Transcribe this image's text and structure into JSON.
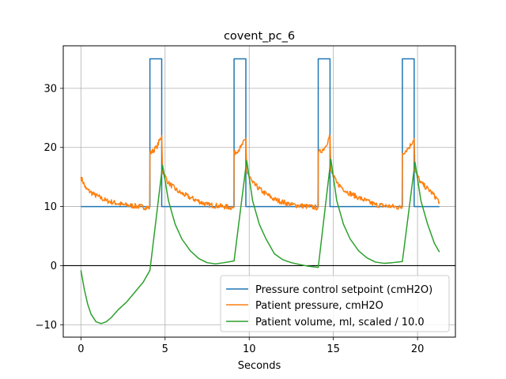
{
  "chart_data": {
    "type": "line",
    "title": "covent_pc_6",
    "xlabel": "Seconds",
    "ylabel": "",
    "xlim": [
      -1.05,
      22.25
    ],
    "ylim": [
      -12.1,
      37.2
    ],
    "xticks": [
      0,
      5,
      10,
      15,
      20
    ],
    "yticks": [
      -10,
      0,
      10,
      20,
      30
    ],
    "grid": true,
    "zero_line": 0,
    "legend_position": "lower-right",
    "series": [
      {
        "name": "Pressure control setpoint (cmH2O)",
        "color": "#1f77b4",
        "points": [
          [
            0,
            10
          ],
          [
            4.1,
            10
          ],
          [
            4.1,
            35
          ],
          [
            4.8,
            35
          ],
          [
            4.8,
            10
          ],
          [
            9.1,
            10
          ],
          [
            9.1,
            35
          ],
          [
            9.8,
            35
          ],
          [
            9.8,
            10
          ],
          [
            14.1,
            10
          ],
          [
            14.1,
            35
          ],
          [
            14.8,
            35
          ],
          [
            14.8,
            10
          ],
          [
            19.1,
            10
          ],
          [
            19.1,
            35
          ],
          [
            19.8,
            35
          ],
          [
            19.8,
            10
          ],
          [
            21.3,
            10
          ]
        ]
      },
      {
        "name": "Patient pressure, cmH2O",
        "color": "#ff7f0e",
        "noise": 0.45,
        "points": [
          [
            0,
            15
          ],
          [
            0.3,
            13
          ],
          [
            0.8,
            12
          ],
          [
            1.5,
            11
          ],
          [
            2.5,
            10.3
          ],
          [
            3.5,
            10
          ],
          [
            4.08,
            9.8
          ],
          [
            4.1,
            19
          ],
          [
            4.5,
            20
          ],
          [
            4.8,
            22
          ],
          [
            4.85,
            16
          ],
          [
            5.2,
            14
          ],
          [
            5.8,
            12.5
          ],
          [
            6.5,
            11.5
          ],
          [
            7.5,
            10.3
          ],
          [
            8.5,
            10
          ],
          [
            9.08,
            9.8
          ],
          [
            9.1,
            19
          ],
          [
            9.5,
            20
          ],
          [
            9.8,
            21.5
          ],
          [
            9.85,
            16
          ],
          [
            10.2,
            14
          ],
          [
            10.8,
            12.5
          ],
          [
            11.5,
            11.2
          ],
          [
            12.5,
            10.3
          ],
          [
            13.5,
            10
          ],
          [
            14.08,
            9.8
          ],
          [
            14.1,
            19
          ],
          [
            14.5,
            20
          ],
          [
            14.8,
            22
          ],
          [
            14.85,
            16
          ],
          [
            15.2,
            14
          ],
          [
            15.8,
            12.5
          ],
          [
            16.5,
            11.5
          ],
          [
            17.5,
            10.3
          ],
          [
            18.5,
            10
          ],
          [
            19.08,
            9.8
          ],
          [
            19.1,
            19
          ],
          [
            19.5,
            20
          ],
          [
            19.8,
            21.5
          ],
          [
            19.85,
            16
          ],
          [
            20.2,
            14
          ],
          [
            20.8,
            12.5
          ],
          [
            21.3,
            10.8
          ]
        ]
      },
      {
        "name": "Patient volume, ml, scaled / 10.0",
        "color": "#2ca02c",
        "points": [
          [
            0,
            -0.8
          ],
          [
            0.2,
            -4
          ],
          [
            0.4,
            -6.5
          ],
          [
            0.6,
            -8.2
          ],
          [
            0.9,
            -9.5
          ],
          [
            1.2,
            -9.8
          ],
          [
            1.5,
            -9.5
          ],
          [
            1.8,
            -8.8
          ],
          [
            2.2,
            -7.5
          ],
          [
            2.7,
            -6.2
          ],
          [
            3.2,
            -4.5
          ],
          [
            3.7,
            -2.8
          ],
          [
            4.1,
            -0.8
          ],
          [
            4.85,
            17
          ],
          [
            5.2,
            11
          ],
          [
            5.6,
            7
          ],
          [
            6,
            4.5
          ],
          [
            6.5,
            2.5
          ],
          [
            7,
            1.2
          ],
          [
            7.5,
            0.5
          ],
          [
            8,
            0.3
          ],
          [
            8.5,
            0.5
          ],
          [
            9.1,
            0.8
          ],
          [
            9.85,
            17.8
          ],
          [
            10.2,
            11
          ],
          [
            10.6,
            7
          ],
          [
            11,
            4.5
          ],
          [
            11.5,
            2
          ],
          [
            12,
            1
          ],
          [
            12.5,
            0.5
          ],
          [
            13,
            0.2
          ],
          [
            13.5,
            -0.1
          ],
          [
            14.1,
            -0.3
          ],
          [
            14.85,
            18
          ],
          [
            15.2,
            11
          ],
          [
            15.6,
            7
          ],
          [
            16,
            4.5
          ],
          [
            16.5,
            2.5
          ],
          [
            17,
            1.3
          ],
          [
            17.5,
            0.6
          ],
          [
            18,
            0.4
          ],
          [
            18.5,
            0.5
          ],
          [
            19.1,
            0.7
          ],
          [
            19.85,
            17.5
          ],
          [
            20.2,
            11
          ],
          [
            20.6,
            7
          ],
          [
            21,
            3.8
          ],
          [
            21.3,
            2.3
          ]
        ]
      }
    ]
  }
}
